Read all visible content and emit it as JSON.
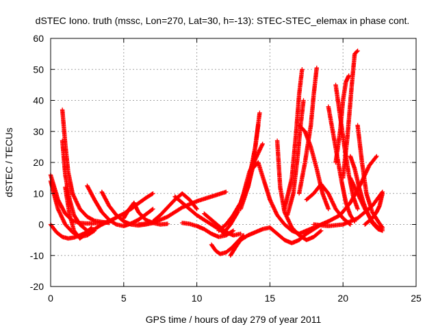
{
  "chart_data": {
    "type": "scatter",
    "title": "dSTEC Iono. truth (mssc, Lon=270, Lat=30, h=-13): STEC-STEC_elemax in phase cont.",
    "xlabel": "GPS time / hours of day 279 of year 2011",
    "ylabel": "dSTEC  / TECUs",
    "xlim": [
      0,
      25
    ],
    "ylim": [
      -20,
      60
    ],
    "x_ticks": [
      0,
      5,
      10,
      15,
      20,
      25
    ],
    "y_ticks": [
      -20,
      -10,
      0,
      10,
      20,
      30,
      40,
      50,
      60
    ],
    "grid": true,
    "marker": "+",
    "series_color": "#ff0000",
    "series": [
      {
        "x": [
          0.0,
          0.5,
          1.0,
          1.5,
          2.0,
          2.5,
          3.0,
          3.5,
          4.0
        ],
        "values": [
          16,
          8,
          3.5,
          1.2,
          0.5,
          0.3,
          0.4,
          0.6,
          0.8
        ]
      },
      {
        "x": [
          0.0,
          0.5,
          1.0,
          1.5,
          2.0,
          2.5,
          3.0
        ],
        "values": [
          14,
          5,
          0,
          -2.5,
          -4,
          -3.5,
          -2
        ]
      },
      {
        "x": [
          0.0,
          0.4,
          0.8,
          1.2,
          1.6,
          2.0,
          2.5
        ],
        "values": [
          0,
          -2.5,
          -4.0,
          -4.5,
          -4.2,
          -3.5,
          -2.5
        ]
      },
      {
        "x": [
          0.8,
          1.0,
          1.2,
          1.5,
          2.0,
          2.5,
          3.0,
          3.5,
          4.0
        ],
        "values": [
          37,
          26,
          17,
          10,
          5,
          2.5,
          1.2,
          0.8,
          0.5
        ]
      },
      {
        "x": [
          0.8,
          1.0,
          1.3,
          1.6,
          2.0,
          2.5,
          3.0,
          3.5
        ],
        "values": [
          27,
          16,
          8,
          3,
          0,
          -2,
          -1.5,
          0
        ]
      },
      {
        "x": [
          1.0,
          1.3,
          1.6,
          2.0,
          2.4,
          2.8
        ],
        "values": [
          12,
          3,
          -2,
          -4.5,
          -3,
          -1
        ]
      },
      {
        "x": [
          2.5,
          3.0,
          3.5,
          4.0,
          4.5,
          5.0,
          5.5,
          6.0,
          6.5,
          7.0
        ],
        "values": [
          12.5,
          8,
          4,
          1.5,
          0,
          -0.5,
          0.3,
          1.5,
          3.2,
          5
        ]
      },
      {
        "x": [
          3.5,
          4.0,
          4.5,
          5.0,
          5.5,
          6.0,
          6.5,
          7.0
        ],
        "values": [
          10.5,
          6,
          3,
          1,
          0,
          -0.3,
          0,
          0.5
        ]
      },
      {
        "x": [
          3.5,
          4.2,
          5.0,
          5.5,
          6.0,
          6.5,
          7.0
        ],
        "values": [
          0,
          1.5,
          3.5,
          5.0,
          6.8,
          8.5,
          10
        ]
      },
      {
        "x": [
          5.0,
          5.3,
          5.7,
          6.0,
          6.5,
          7.0,
          7.5,
          8.0
        ],
        "values": [
          2,
          4.5,
          7,
          4,
          1.5,
          0.5,
          0,
          0.2
        ]
      },
      {
        "x": [
          6.0,
          7.0,
          8.0,
          9.0,
          10.0,
          11.0,
          12.0
        ],
        "values": [
          0,
          0.5,
          2.5,
          5.5,
          7.5,
          9,
          10.5
        ]
      },
      {
        "x": [
          7.0,
          7.5,
          8.0,
          8.5,
          9.0,
          9.5,
          10.0
        ],
        "values": [
          1,
          3,
          5.5,
          8,
          10,
          8,
          5
        ]
      },
      {
        "x": [
          8.5,
          9.0,
          9.5,
          10.0,
          10.5,
          11.0,
          11.5,
          12.0
        ],
        "values": [
          9,
          7,
          5,
          3,
          1.5,
          0,
          -1.5,
          -3
        ]
      },
      {
        "x": [
          9.0,
          9.5,
          10.0,
          10.5,
          11.0,
          11.5,
          12.0,
          12.5
        ],
        "values": [
          0.5,
          0.2,
          -0.5,
          -1.5,
          -3,
          -4,
          -3.5,
          -2
        ]
      },
      {
        "x": [
          10.5,
          11.0,
          11.5,
          12.0,
          12.5,
          13.0
        ],
        "values": [
          3.5,
          1.5,
          -0.5,
          -2.5,
          -3.5,
          -3
        ]
      },
      {
        "x": [
          11.0,
          11.3,
          11.6,
          12.0,
          12.4,
          12.8,
          13.2
        ],
        "values": [
          -6.5,
          -8.5,
          -9.5,
          -9.0,
          -7.5,
          -5.5,
          -3.5
        ]
      },
      {
        "x": [
          12.3,
          12.7,
          13.0,
          13.5,
          14.0,
          14.5,
          15.0
        ],
        "values": [
          -10,
          -7,
          -5,
          -3.5,
          -2.5,
          -1.5,
          -1
        ]
      },
      {
        "x": [
          11.5,
          12.0,
          12.5,
          13.0,
          13.5,
          14.0,
          14.3
        ],
        "values": [
          -2,
          0,
          3,
          7,
          13,
          25,
          36
        ]
      },
      {
        "x": [
          11.8,
          12.3,
          12.8,
          13.2,
          13.6,
          14.0,
          14.5
        ],
        "values": [
          -3,
          0,
          4,
          10,
          17,
          21,
          26
        ]
      },
      {
        "x": [
          12.0,
          12.5,
          13.0,
          13.5,
          13.8,
          14.0,
          14.2
        ],
        "values": [
          0,
          3,
          7,
          12,
          18,
          25,
          32
        ]
      },
      {
        "x": [
          12.5,
          13.0,
          13.4,
          13.8,
          14.2,
          14.6,
          15.0
        ],
        "values": [
          3,
          7,
          12,
          18,
          20,
          14,
          8
        ]
      },
      {
        "x": [
          13.0,
          13.5,
          13.8,
          14.0
        ],
        "values": [
          5,
          12,
          18,
          22
        ]
      },
      {
        "x": [
          15.0,
          15.5,
          16.0,
          16.5,
          17.0,
          17.5,
          18.0
        ],
        "values": [
          8,
          3,
          0,
          -2,
          -3,
          -2,
          -1
        ]
      },
      {
        "x": [
          15.5,
          15.7,
          16.0,
          16.5,
          17.0,
          17.5,
          18.0,
          18.5
        ],
        "values": [
          27,
          12,
          4,
          -1,
          -3.5,
          -5,
          -4,
          -2
        ]
      },
      {
        "x": [
          15.0,
          15.5,
          16.0,
          16.5,
          17.0,
          17.5,
          18.0,
          18.5,
          19.0
        ],
        "values": [
          -1,
          -3,
          -5,
          -6,
          -5,
          -3,
          -1.5,
          0,
          1
        ]
      },
      {
        "x": [
          16.0,
          16.5,
          16.8,
          17.0,
          17.2
        ],
        "values": [
          5,
          15,
          30,
          42,
          50
        ]
      },
      {
        "x": [
          16.2,
          16.6,
          16.9,
          17.1,
          17.3
        ],
        "values": [
          3,
          10,
          22,
          32,
          40
        ]
      },
      {
        "x": [
          17.0,
          17.4,
          17.8,
          18.0,
          18.2
        ],
        "values": [
          10,
          20,
          32,
          42,
          50.5
        ]
      },
      {
        "x": [
          17.0,
          17.4,
          17.8,
          18.2,
          18.6,
          19.0
        ],
        "values": [
          32,
          30,
          25,
          18,
          10,
          5
        ]
      },
      {
        "x": [
          17.5,
          18.0,
          18.5,
          19.0,
          19.5,
          20.0,
          20.5
        ],
        "values": [
          8,
          10,
          13,
          10,
          5,
          2,
          0
        ]
      },
      {
        "x": [
          19.0,
          19.3,
          19.6,
          19.9,
          20.2,
          20.5,
          20.8
        ],
        "values": [
          38,
          30,
          22,
          14,
          7,
          3,
          1
        ]
      },
      {
        "x": [
          19.5,
          19.8,
          20.1,
          20.4,
          20.7,
          21.0
        ],
        "values": [
          45,
          35,
          25,
          16,
          9,
          5
        ]
      },
      {
        "x": [
          19.5,
          19.8,
          20.0,
          20.2,
          20.4
        ],
        "values": [
          20,
          30,
          40,
          46,
          48
        ]
      },
      {
        "x": [
          20.0,
          20.3,
          20.6,
          20.8,
          21.0
        ],
        "values": [
          15,
          28,
          45,
          55,
          56
        ]
      },
      {
        "x": [
          20.5,
          20.8,
          21.1,
          21.4,
          21.7,
          22.0,
          22.4,
          22.7
        ],
        "values": [
          22,
          18,
          12,
          7,
          3.5,
          0.5,
          -1.5,
          -2
        ]
      },
      {
        "x": [
          21.0,
          21.3,
          21.6,
          22.0,
          22.4,
          22.7
        ],
        "values": [
          32,
          20,
          10,
          4,
          1,
          -1
        ]
      },
      {
        "x": [
          20.5,
          21.0,
          21.5,
          22.0,
          22.4,
          22.7
        ],
        "values": [
          15,
          10,
          5,
          1,
          -1,
          -1.5
        ]
      },
      {
        "x": [
          18.0,
          19.0,
          20.0,
          21.0,
          22.0,
          22.7
        ],
        "values": [
          0,
          -0.5,
          0,
          2,
          6,
          10.5
        ]
      },
      {
        "x": [
          19.0,
          19.8,
          20.5,
          21.2,
          21.8,
          22.3
        ],
        "values": [
          1,
          3,
          7,
          13,
          19,
          22
        ]
      },
      {
        "x": [
          21.5,
          22.0,
          22.3,
          22.5,
          22.7
        ],
        "values": [
          0,
          2,
          4,
          6,
          10
        ]
      }
    ]
  }
}
